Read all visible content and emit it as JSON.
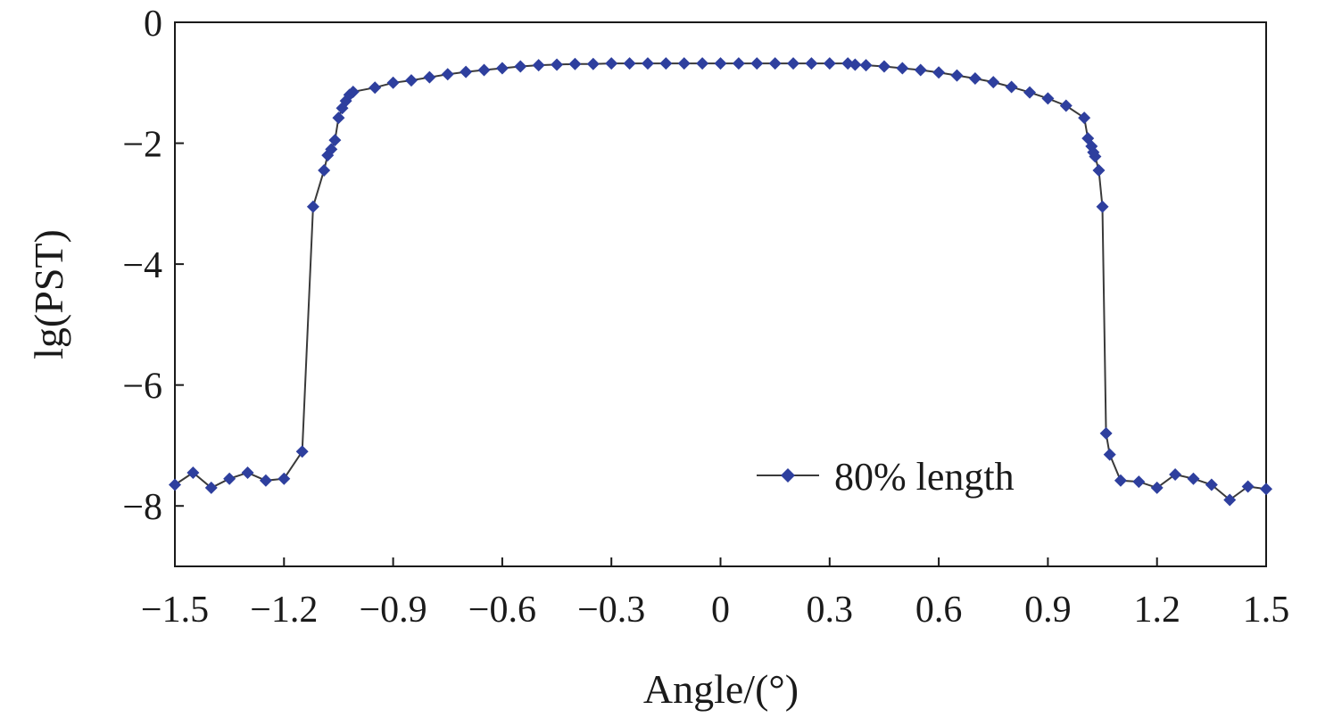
{
  "chart_data": {
    "type": "line",
    "xlabel": "Angle/(°)",
    "ylabel": "lg(PST)",
    "xlim": [
      -1.5,
      1.5
    ],
    "ylim": [
      -9,
      0
    ],
    "xticks": [
      -1.5,
      -1.2,
      -0.9,
      -0.6,
      -0.3,
      0,
      0.3,
      0.6,
      0.9,
      1.2,
      1.5
    ],
    "xtick_labels": [
      "−1.5",
      "−1.2",
      "−0.9",
      "−0.6",
      "−0.3",
      "0",
      "0.3",
      "0.6",
      "0.9",
      "1.2",
      "1.5"
    ],
    "yticks": [
      0,
      -2,
      -4,
      -6,
      -8
    ],
    "ytick_labels": [
      "0",
      "−2",
      "−4",
      "−6",
      "−8"
    ],
    "grid": false,
    "legend_position": "lower-right",
    "series_color": "#2e3f9e",
    "series": [
      {
        "name": "80% length",
        "marker": "diamond",
        "x": [
          -1.5,
          -1.45,
          -1.4,
          -1.35,
          -1.3,
          -1.25,
          -1.2,
          -1.15,
          -1.12,
          -1.09,
          -1.08,
          -1.07,
          -1.06,
          -1.05,
          -1.04,
          -1.03,
          -1.02,
          -1.01,
          -0.95,
          -0.9,
          -0.85,
          -0.8,
          -0.75,
          -0.7,
          -0.65,
          -0.6,
          -0.55,
          -0.5,
          -0.45,
          -0.4,
          -0.35,
          -0.3,
          -0.25,
          -0.2,
          -0.15,
          -0.1,
          -0.05,
          0.0,
          0.05,
          0.1,
          0.15,
          0.2,
          0.25,
          0.3,
          0.35,
          0.37,
          0.4,
          0.45,
          0.5,
          0.55,
          0.6,
          0.65,
          0.7,
          0.75,
          0.8,
          0.85,
          0.9,
          0.95,
          1.0,
          1.01,
          1.02,
          1.025,
          1.03,
          1.04,
          1.05,
          1.06,
          1.07,
          1.1,
          1.15,
          1.2,
          1.25,
          1.3,
          1.35,
          1.4,
          1.45,
          1.5
        ],
        "y": [
          -7.65,
          -7.45,
          -7.7,
          -7.55,
          -7.45,
          -7.58,
          -7.55,
          -7.1,
          -3.05,
          -2.45,
          -2.2,
          -2.1,
          -1.95,
          -1.58,
          -1.42,
          -1.3,
          -1.2,
          -1.15,
          -1.08,
          -1.0,
          -0.96,
          -0.91,
          -0.86,
          -0.82,
          -0.79,
          -0.76,
          -0.73,
          -0.71,
          -0.7,
          -0.69,
          -0.69,
          -0.68,
          -0.68,
          -0.68,
          -0.68,
          -0.68,
          -0.68,
          -0.68,
          -0.68,
          -0.68,
          -0.68,
          -0.68,
          -0.68,
          -0.68,
          -0.68,
          -0.7,
          -0.71,
          -0.73,
          -0.76,
          -0.79,
          -0.83,
          -0.88,
          -0.93,
          -0.99,
          -1.07,
          -1.16,
          -1.26,
          -1.38,
          -1.58,
          -1.92,
          -2.05,
          -2.15,
          -2.22,
          -2.45,
          -3.05,
          -6.8,
          -7.15,
          -7.58,
          -7.6,
          -7.7,
          -7.48,
          -7.55,
          -7.65,
          -7.9,
          -7.68,
          -7.72
        ]
      }
    ]
  }
}
